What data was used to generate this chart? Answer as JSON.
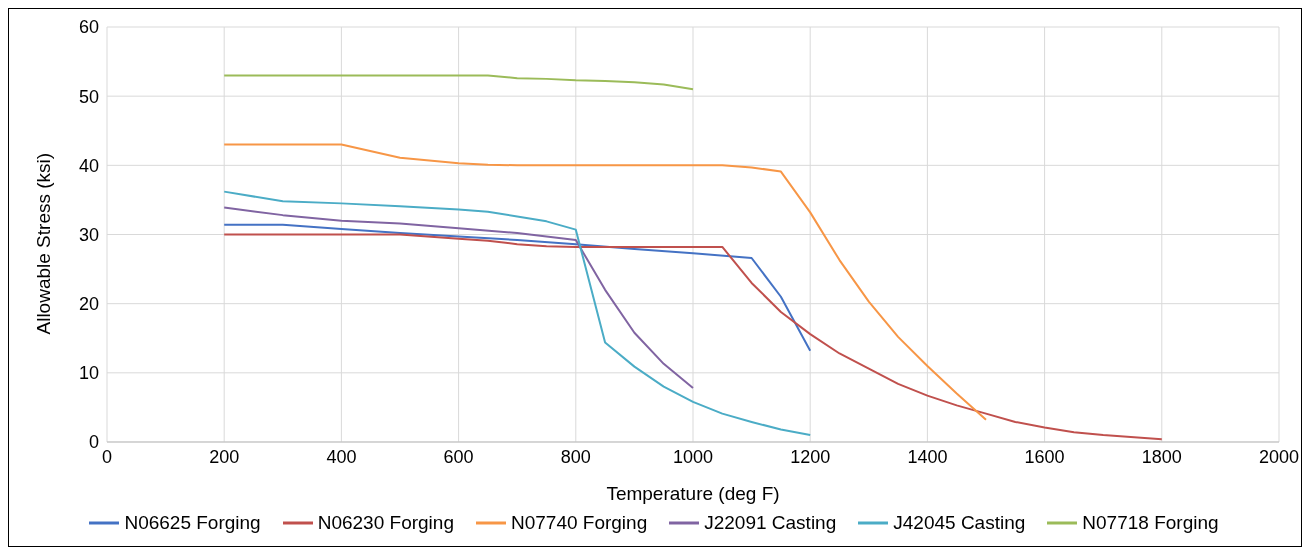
{
  "chart_data": {
    "type": "line",
    "xlabel": "Temperature (deg F)",
    "ylabel": "Allowable Stress (ksi)",
    "xlim": [
      0,
      2000
    ],
    "xticks": [
      0,
      200,
      400,
      600,
      800,
      1000,
      1200,
      1400,
      1600,
      1800,
      2000
    ],
    "ylim": [
      0,
      60
    ],
    "yticks": [
      0,
      10,
      20,
      30,
      40,
      50,
      60
    ],
    "grid": true,
    "legend": "bottom",
    "marker": "none",
    "line_style": "solid",
    "series": [
      {
        "name": "N06625 Forging",
        "color": "#4472c4",
        "x": [
          200,
          300,
          400,
          500,
          600,
          700,
          800,
          900,
          1000,
          1100,
          1150,
          1200
        ],
        "values": [
          31.4,
          31.4,
          30.8,
          30.2,
          29.7,
          29.2,
          28.6,
          27.9,
          27.3,
          26.6,
          21,
          13.2
        ]
      },
      {
        "name": "N06230 Forging",
        "color": "#c0504d",
        "x": [
          200,
          300,
          400,
          500,
          600,
          650,
          700,
          750,
          800,
          1050,
          1100,
          1150,
          1200,
          1250,
          1300,
          1350,
          1400,
          1450,
          1500,
          1550,
          1600,
          1650,
          1700,
          1800
        ],
        "values": [
          30,
          30,
          30,
          30,
          29.4,
          29.1,
          28.6,
          28.3,
          28.2,
          28.2,
          23,
          18.8,
          15.6,
          12.8,
          10.6,
          8.4,
          6.7,
          5.3,
          4.1,
          2.9,
          2.1,
          1.4,
          1.0,
          0.4
        ]
      },
      {
        "name": "N07740 Forging",
        "color": "#f79646",
        "x": [
          200,
          300,
          400,
          500,
          600,
          650,
          700,
          1000,
          1050,
          1100,
          1150,
          1200,
          1250,
          1300,
          1350,
          1400,
          1450,
          1500
        ],
        "values": [
          43,
          43,
          43,
          41.1,
          40.3,
          40.1,
          40,
          40,
          40,
          39.7,
          39.1,
          33.2,
          26.3,
          20.3,
          15.2,
          11,
          7,
          3.2
        ]
      },
      {
        "name": "J22091 Casting",
        "color": "#8064a2",
        "x": [
          200,
          300,
          400,
          500,
          600,
          700,
          800,
          850,
          900,
          950,
          1000
        ],
        "values": [
          33.9,
          32.8,
          32,
          31.6,
          30.9,
          30.2,
          29.2,
          22,
          15.8,
          11.3,
          7.8
        ]
      },
      {
        "name": "J42045 Casting",
        "color": "#4bacc6",
        "x": [
          200,
          300,
          400,
          500,
          600,
          650,
          700,
          750,
          800,
          850,
          900,
          950,
          1000,
          1050,
          1100,
          1150,
          1200
        ],
        "values": [
          36.2,
          34.8,
          34.5,
          34.1,
          33.6,
          33.3,
          32.6,
          31.9,
          30.7,
          14.4,
          10.9,
          8,
          5.8,
          4.1,
          2.9,
          1.8,
          1.0
        ]
      },
      {
        "name": "N07718 Forging",
        "color": "#9bbb59",
        "x": [
          200,
          300,
          400,
          500,
          600,
          650,
          700,
          750,
          800,
          850,
          900,
          950,
          1000
        ],
        "values": [
          53,
          53,
          53,
          53,
          53,
          53,
          52.6,
          52.5,
          52.3,
          52.2,
          52.0,
          51.7,
          51
        ]
      }
    ]
  }
}
